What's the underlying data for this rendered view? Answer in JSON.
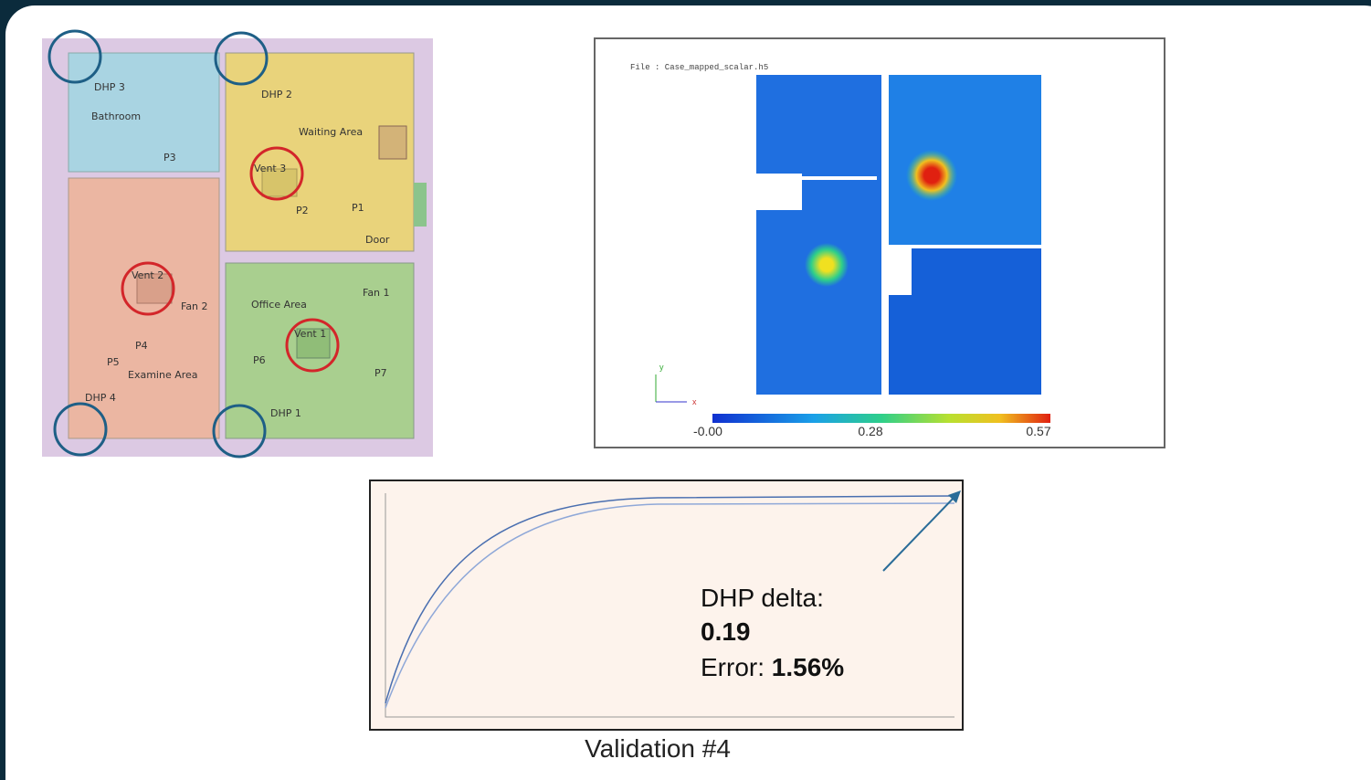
{
  "floor_plan": {
    "labels": [
      "DHP 3",
      "Bathroom",
      "P3",
      "DHP 2",
      "Waiting Area",
      "Vent 3",
      "P2",
      "P1",
      "Door",
      "Vent 2",
      "Fan 2",
      "Office Area",
      "Fan 1",
      "Vent 1",
      "P4",
      "P5",
      "Examine Area",
      "P6",
      "P7",
      "DHP 4",
      "DHP 1"
    ]
  },
  "heatmap": {
    "file": "File : Case_mapped_scalar.h5",
    "axis_y": "y",
    "axis_x": "x",
    "colorbar_labels": [
      "-0.00",
      "0.28",
      "0.57"
    ]
  },
  "plot": {
    "delta_label": "DHP delta:",
    "delta_value": "0.19",
    "error_label": "Error:",
    "error_value": "1.56%",
    "caption": "Validation #4"
  }
}
